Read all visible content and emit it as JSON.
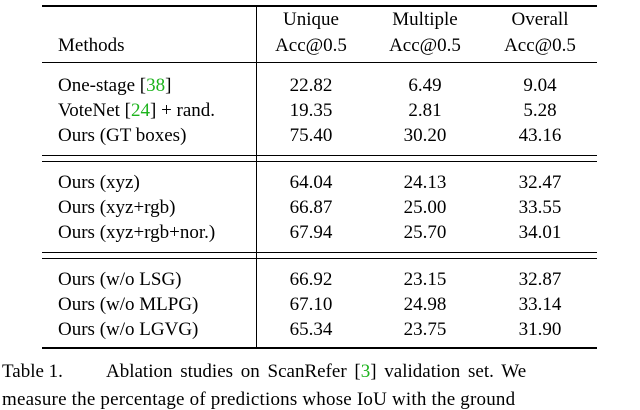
{
  "table": {
    "header": {
      "methods": "Methods",
      "columns": [
        {
          "line1": "Unique",
          "line2": "Acc@0.5"
        },
        {
          "line1": "Multiple",
          "line2": "Acc@0.5"
        },
        {
          "line1": "Overall",
          "line2": "Acc@0.5"
        }
      ]
    },
    "groups": [
      [
        {
          "method": [
            {
              "text": "One-stage ["
            },
            {
              "text": "38",
              "link": true
            },
            {
              "text": "]"
            }
          ],
          "values": [
            "22.82",
            "6.49",
            "9.04"
          ]
        },
        {
          "method": [
            {
              "text": "VoteNet ["
            },
            {
              "text": "24",
              "link": true
            },
            {
              "text": "] + rand."
            }
          ],
          "values": [
            "19.35",
            "2.81",
            "5.28"
          ]
        },
        {
          "method": [
            {
              "text": "Ours (GT boxes)"
            }
          ],
          "values": [
            "75.40",
            "30.20",
            "43.16"
          ]
        }
      ],
      [
        {
          "method": [
            {
              "text": "Ours (xyz)"
            }
          ],
          "values": [
            "64.04",
            "24.13",
            "32.47"
          ]
        },
        {
          "method": [
            {
              "text": "Ours (xyz+rgb)"
            }
          ],
          "values": [
            "66.87",
            "25.00",
            "33.55"
          ]
        },
        {
          "method": [
            {
              "text": "Ours (xyz+rgb+nor.)"
            }
          ],
          "values": [
            "67.94",
            "25.70",
            "34.01"
          ]
        }
      ],
      [
        {
          "method": [
            {
              "text": "Ours (w/o LSG)"
            }
          ],
          "values": [
            "66.92",
            "23.15",
            "32.87"
          ]
        },
        {
          "method": [
            {
              "text": "Ours (w/o MLPG)"
            }
          ],
          "values": [
            "67.10",
            "24.98",
            "33.14"
          ]
        },
        {
          "method": [
            {
              "text": "Ours (w/o LGVG)"
            }
          ],
          "values": [
            "65.34",
            "23.75",
            "31.90"
          ]
        }
      ]
    ]
  },
  "caption": {
    "label": "Table 1.",
    "line1": [
      {
        "text": "Ablation studies on ScanRefer ["
      },
      {
        "text": "3",
        "link": true
      },
      {
        "text": "] validation set. We"
      }
    ],
    "line2": "measure the percentage of predictions whose IoU with the ground"
  }
}
